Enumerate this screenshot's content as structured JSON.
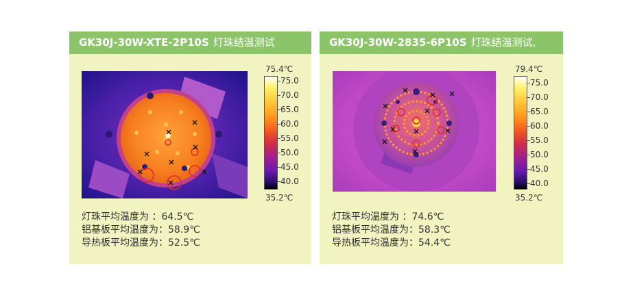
{
  "panels": [
    {
      "title_model": "GK30J-30W-XTE-2P10S",
      "title_cn": "灯珠结温测试",
      "scale_max": "75.4℃",
      "scale_min": "35.2℃",
      "ticks": [
        "75.0",
        "70.0",
        "65.0",
        "60.0",
        "55.0",
        "50.0",
        "45.0",
        "40.0"
      ],
      "stats": [
        "灯珠平均温度为 ：64.5℃",
        "铝基板平均温度为：58.9℃",
        "导热板平均温度为：52.5℃"
      ]
    },
    {
      "title_model": "GK30J-30W-2835-6P10S",
      "title_cn": "灯珠结温测试,",
      "scale_max": "79.4℃",
      "scale_min": "35.2℃",
      "ticks": [
        "75.0",
        "70.0",
        "65.0",
        "60.0",
        "55.0",
        "50.0",
        "45.0",
        "40.0"
      ],
      "stats": [
        "灯珠平均温度为 ：74.6℃",
        "铝基板平均温度为：58.3℃",
        "导热板平均温度为：54.4℃"
      ]
    }
  ],
  "colors": {
    "header_bg": "#8cc46a",
    "panel_bg": "#f1f3c0"
  }
}
